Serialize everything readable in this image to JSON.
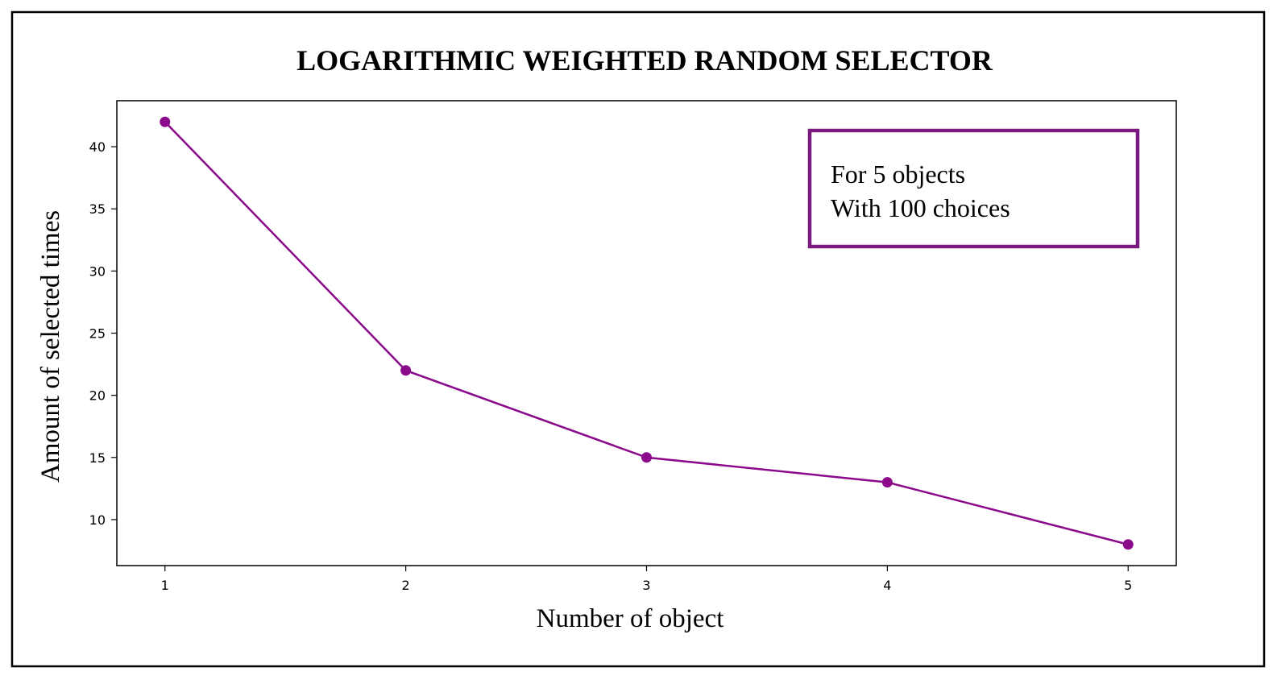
{
  "chart_data": {
    "type": "line",
    "title": "LOGARITHMIC WEIGHTED RANDOM SELECTOR",
    "xlabel": "Number of object",
    "ylabel": "Amount of selected times",
    "x": [
      1,
      2,
      3,
      4,
      5
    ],
    "series": [
      {
        "values": [
          42,
          22,
          15,
          13,
          8
        ]
      }
    ],
    "xticks": [
      "1",
      "2",
      "3",
      "4",
      "5"
    ],
    "yticks": [
      10,
      15,
      20,
      25,
      30,
      35,
      40
    ],
    "xlim": [
      0.8,
      5.2
    ],
    "ylim": [
      6.3,
      43.7
    ],
    "grid": false,
    "annotation": {
      "lines": [
        "For 5 objects",
        "With 100 choices"
      ],
      "placement": "top-right"
    },
    "colors": {
      "series": "#8b0a8b",
      "annotation_border": "#7a1a80",
      "axes": "#000000",
      "frame": "#000000"
    }
  }
}
